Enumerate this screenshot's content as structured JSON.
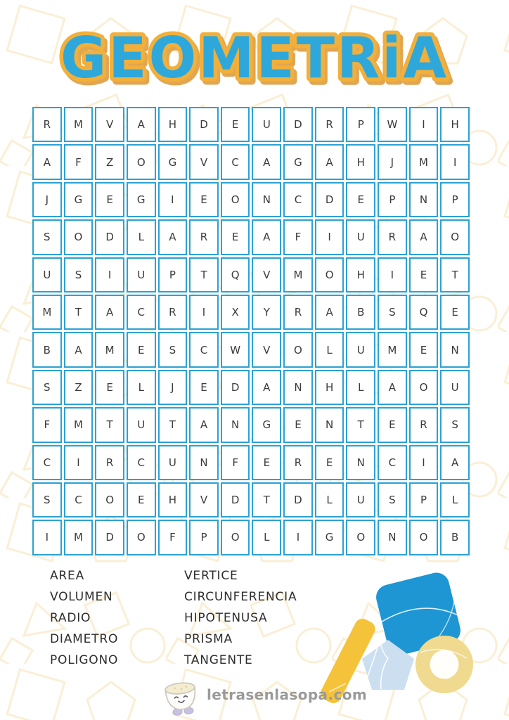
{
  "title": "GEOMETRiA",
  "grid": {
    "cols": 14,
    "rows_count": 12,
    "rows": [
      "RMVAHDEUDRPWIH",
      "AFZOGVCAGAHJMI",
      "JGEGIEONCDEPNP",
      "SODLAREAFIURAO",
      "USIUPTQVMOHIET",
      "MTACRIXYRABSQE",
      "BAMESCWVOLUMEN",
      "SZELJEDANHLAOU",
      "FMTUTANGENTERS",
      "CIRCUNFERENCIA",
      "SCOEHVDTDLUSPL",
      "IMDOFPOLIGONOB"
    ]
  },
  "words": {
    "left": [
      "AREA",
      "VOLUMEN",
      "RADIO",
      "DIAMETRO",
      "POLIGONO"
    ],
    "right": [
      "VERTICE",
      "CIRCUNFERENCIA",
      "HIPOTENUSA",
      "PRISMA",
      "TANGENTE"
    ]
  },
  "footer": {
    "site": "letrasenlasopa.com"
  },
  "icons": {
    "mascot": "soup-bowl-mascot",
    "decorations": [
      "blue-rounded-square",
      "yellow-stick",
      "light-blue-pentagon",
      "yellow-ring"
    ]
  },
  "colors": {
    "title_fill": "#2FA8DB",
    "title_outline": "#F2B03B",
    "title_shadow": "#DB9531",
    "grid_border": "#2BA2D4",
    "letter_color": "#3B3B3B",
    "pattern_stroke": "#F6E3B4",
    "shape_blue": "#1E96D4",
    "shape_yellow": "#F5C33A",
    "shape_light_blue": "#CBDFF1",
    "shape_pale_ring": "#EFDA8F",
    "watermark_text": "#9A9A9A",
    "mascot_feet": "#C6C2E2"
  }
}
